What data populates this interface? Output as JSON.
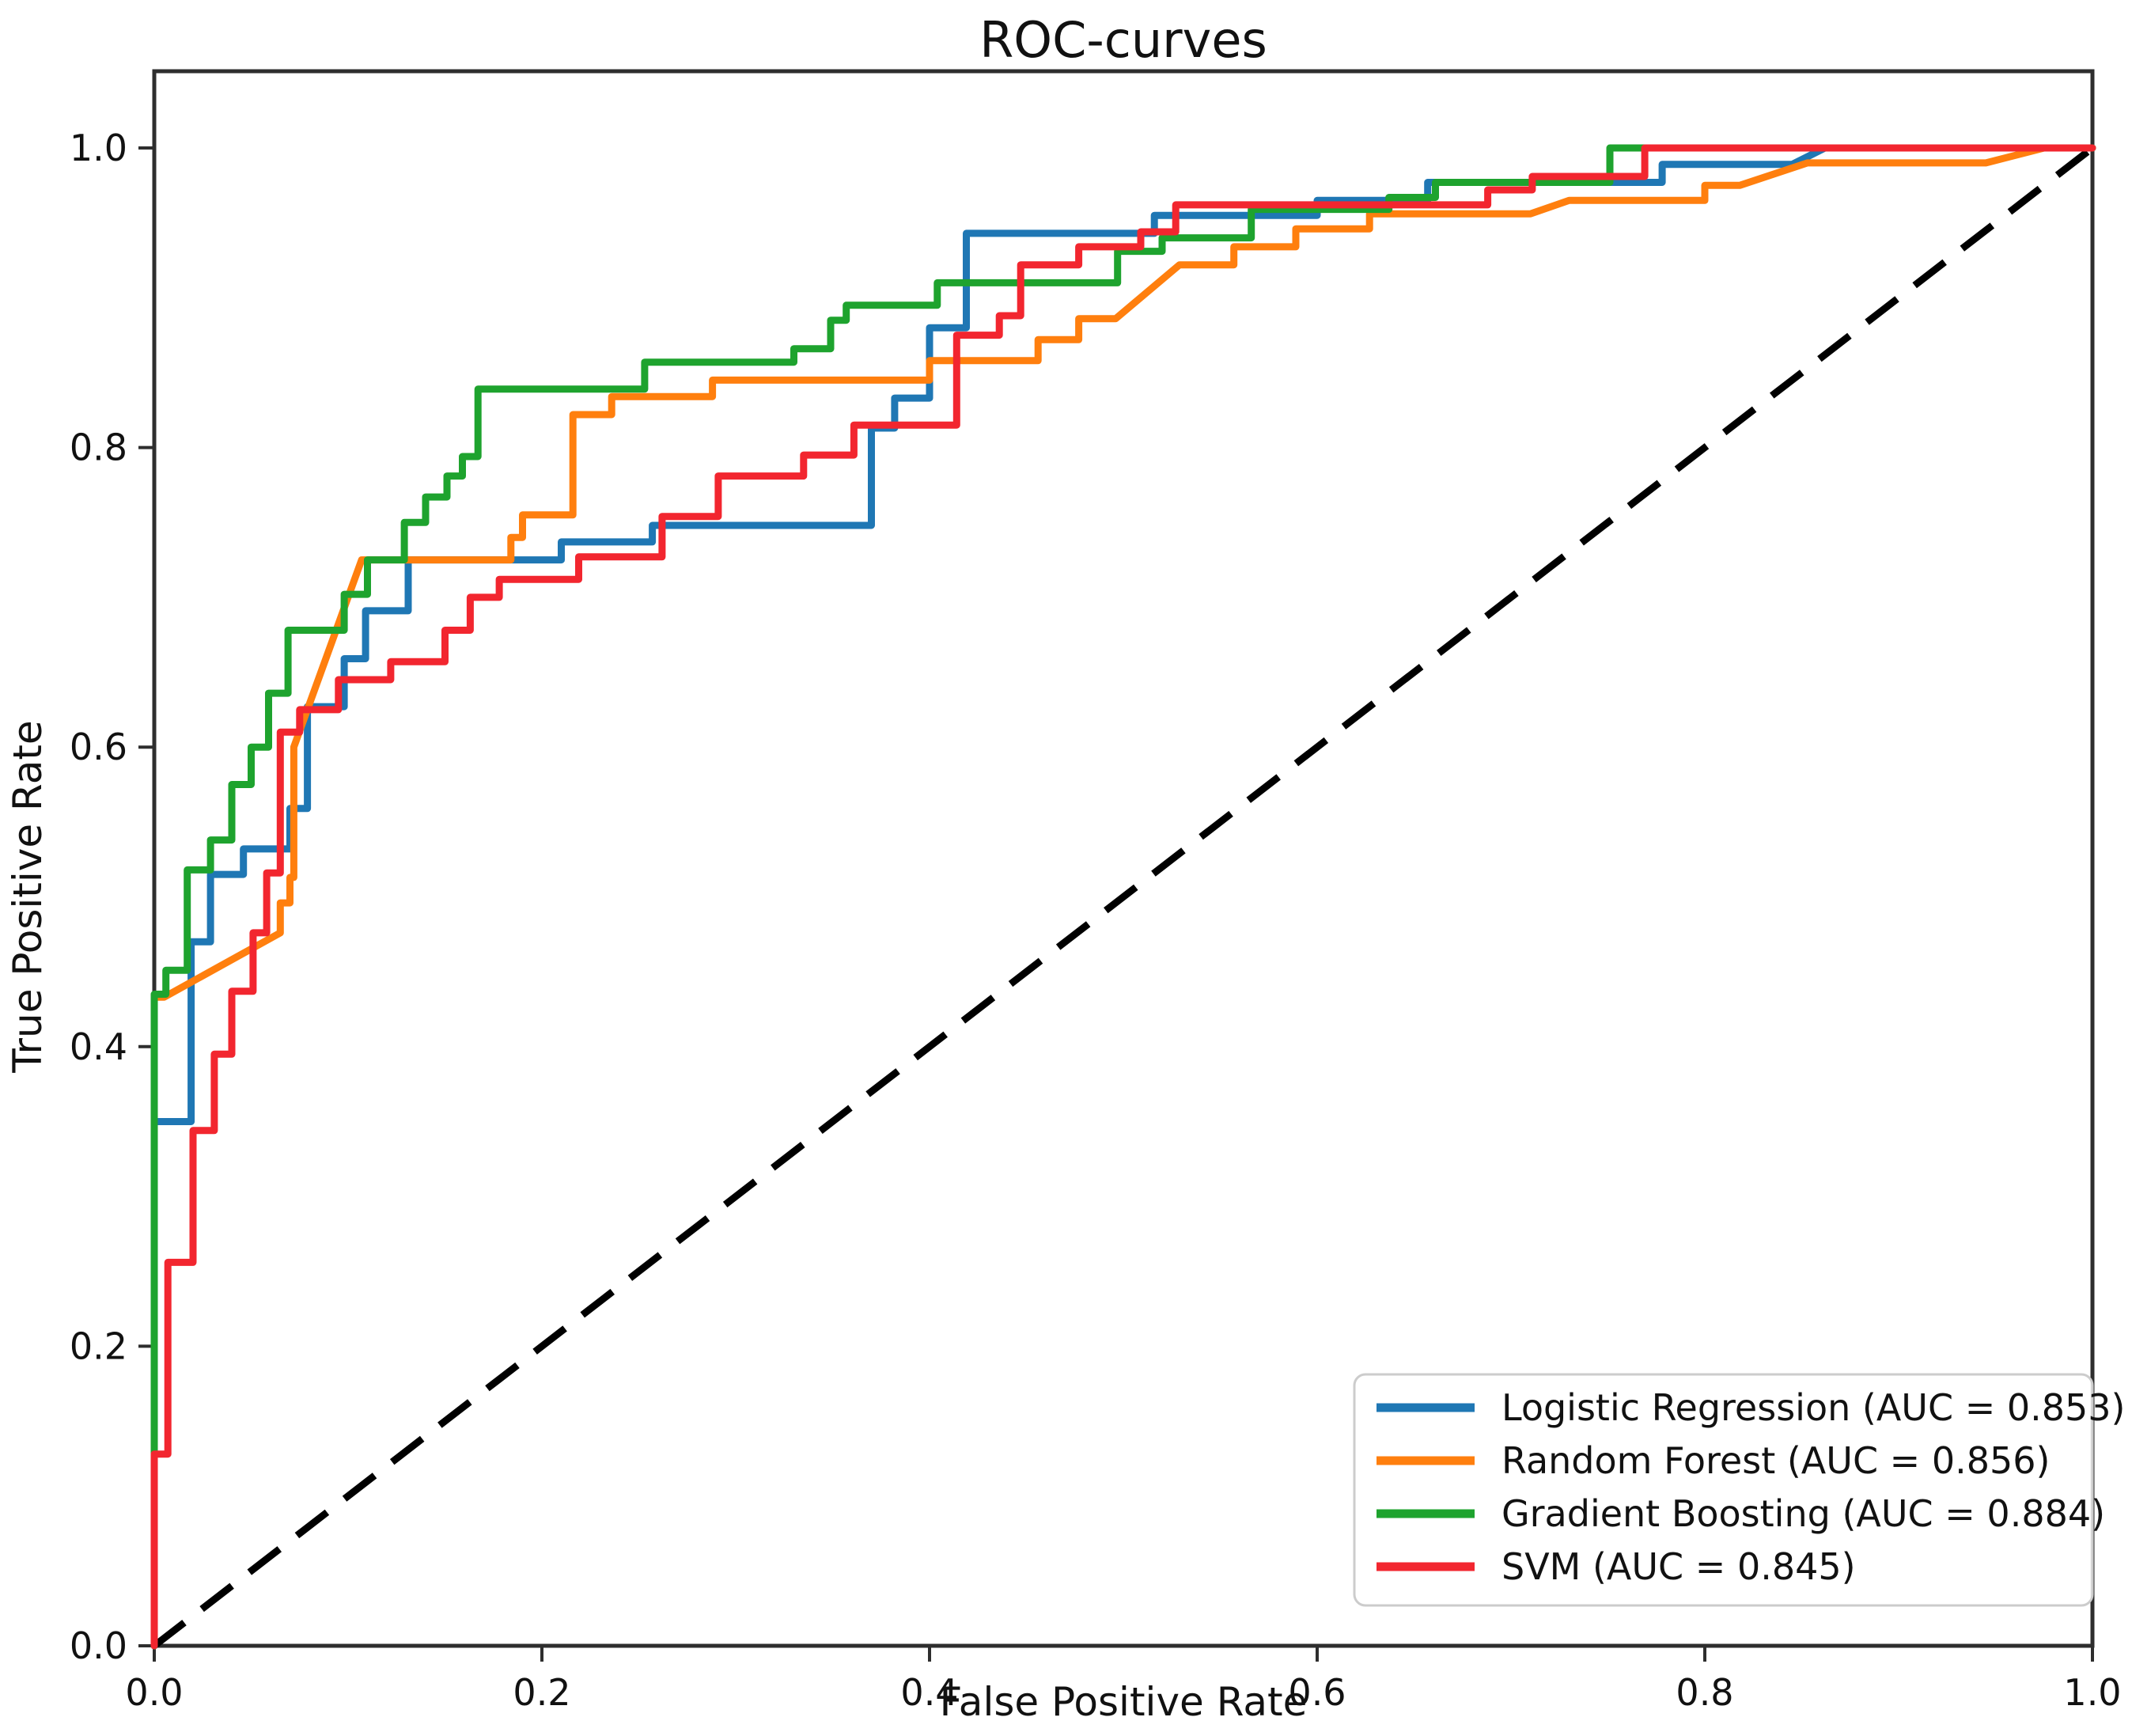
{
  "figure": {
    "title": "ROC-curves"
  },
  "chart_data": {
    "type": "line",
    "subtype": "roc-step-curves",
    "title": "ROC-curves",
    "xlabel": "False Positive Rate",
    "ylabel": "True Positive Rate",
    "xlim": [
      0.0,
      1.0
    ],
    "ylim": [
      0.0,
      1.05
    ],
    "x_ticks": [
      0.0,
      0.2,
      0.4,
      0.6,
      0.8,
      1.0
    ],
    "y_ticks": [
      0.0,
      0.2,
      0.4,
      0.6,
      0.8,
      1.0
    ],
    "x_tick_labels": [
      "0.0",
      "0.2",
      "0.4",
      "0.6",
      "0.8",
      "1.0"
    ],
    "y_tick_labels": [
      "0.0",
      "0.2",
      "0.4",
      "0.6",
      "0.8",
      "1.0"
    ],
    "grid": false,
    "legend_position": "lower right",
    "text_color": "#111111",
    "spine_color": "#2e2e2e",
    "legend_border_color": "#cccccc",
    "diagonal": {
      "name": "chance-line",
      "style": "dashed",
      "color": "#000000",
      "points": [
        [
          0.0,
          0.0
        ],
        [
          1.0,
          1.0
        ]
      ]
    },
    "series": [
      {
        "name": "Logistic Regression (AUC = 0.853)",
        "model": "Logistic Regression",
        "auc": 0.853,
        "color": "#1f77b4",
        "points": [
          [
            0,
            0
          ],
          [
            0,
            0.35
          ],
          [
            0.019,
            0.35
          ],
          [
            0.019,
            0.47
          ],
          [
            0.029,
            0.47
          ],
          [
            0.029,
            0.515
          ],
          [
            0.046,
            0.515
          ],
          [
            0.046,
            0.532
          ],
          [
            0.07,
            0.532
          ],
          [
            0.07,
            0.559
          ],
          [
            0.079,
            0.559
          ],
          [
            0.079,
            0.627
          ],
          [
            0.098,
            0.627
          ],
          [
            0.098,
            0.659
          ],
          [
            0.109,
            0.659
          ],
          [
            0.109,
            0.691
          ],
          [
            0.131,
            0.691
          ],
          [
            0.131,
            0.725
          ],
          [
            0.21,
            0.725
          ],
          [
            0.21,
            0.737
          ],
          [
            0.257,
            0.737
          ],
          [
            0.257,
            0.748
          ],
          [
            0.37,
            0.748
          ],
          [
            0.37,
            0.813
          ],
          [
            0.382,
            0.813
          ],
          [
            0.382,
            0.833
          ],
          [
            0.4,
            0.833
          ],
          [
            0.4,
            0.88
          ],
          [
            0.419,
            0.88
          ],
          [
            0.419,
            0.943
          ],
          [
            0.516,
            0.943
          ],
          [
            0.516,
            0.955
          ],
          [
            0.6,
            0.955
          ],
          [
            0.6,
            0.965
          ],
          [
            0.657,
            0.965
          ],
          [
            0.657,
            0.977
          ],
          [
            0.778,
            0.977
          ],
          [
            0.778,
            0.989
          ],
          [
            0.845,
            0.989
          ],
          [
            0.862,
            1.0
          ],
          [
            1.0,
            1.0
          ]
        ]
      },
      {
        "name": "Random Forest (AUC = 0.856)",
        "model": "Random Forest",
        "auc": 0.856,
        "color": "#ff7f0e",
        "points": [
          [
            0,
            0
          ],
          [
            0,
            0.433
          ],
          [
            0.005,
            0.433
          ],
          [
            0.065,
            0.476
          ],
          [
            0.065,
            0.496
          ],
          [
            0.07,
            0.496
          ],
          [
            0.07,
            0.513
          ],
          [
            0.072,
            0.513
          ],
          [
            0.072,
            0.6
          ],
          [
            0.107,
            0.725
          ],
          [
            0.184,
            0.725
          ],
          [
            0.184,
            0.74
          ],
          [
            0.19,
            0.74
          ],
          [
            0.19,
            0.755
          ],
          [
            0.216,
            0.755
          ],
          [
            0.216,
            0.822
          ],
          [
            0.236,
            0.822
          ],
          [
            0.236,
            0.834
          ],
          [
            0.288,
            0.834
          ],
          [
            0.288,
            0.845
          ],
          [
            0.4,
            0.845
          ],
          [
            0.4,
            0.858
          ],
          [
            0.456,
            0.858
          ],
          [
            0.456,
            0.872
          ],
          [
            0.477,
            0.872
          ],
          [
            0.477,
            0.886
          ],
          [
            0.496,
            0.886
          ],
          [
            0.529,
            0.922
          ],
          [
            0.557,
            0.922
          ],
          [
            0.557,
            0.934
          ],
          [
            0.589,
            0.934
          ],
          [
            0.589,
            0.946
          ],
          [
            0.627,
            0.946
          ],
          [
            0.627,
            0.956
          ],
          [
            0.71,
            0.956
          ],
          [
            0.73,
            0.965
          ],
          [
            0.8,
            0.965
          ],
          [
            0.8,
            0.975
          ],
          [
            0.818,
            0.975
          ],
          [
            0.853,
            0.99
          ],
          [
            0.945,
            0.99
          ],
          [
            0.975,
            1.0
          ],
          [
            1.0,
            1.0
          ]
        ]
      },
      {
        "name": "Gradient Boosting (AUC = 0.884)",
        "model": "Gradient Boosting",
        "auc": 0.884,
        "color": "#1ea32e",
        "points": [
          [
            0,
            0
          ],
          [
            0,
            0.435
          ],
          [
            0.006,
            0.435
          ],
          [
            0.006,
            0.451
          ],
          [
            0.017,
            0.451
          ],
          [
            0.017,
            0.518
          ],
          [
            0.029,
            0.518
          ],
          [
            0.029,
            0.538
          ],
          [
            0.04,
            0.538
          ],
          [
            0.04,
            0.575
          ],
          [
            0.05,
            0.575
          ],
          [
            0.05,
            0.6
          ],
          [
            0.059,
            0.6
          ],
          [
            0.059,
            0.636
          ],
          [
            0.069,
            0.636
          ],
          [
            0.069,
            0.678
          ],
          [
            0.098,
            0.678
          ],
          [
            0.098,
            0.702
          ],
          [
            0.11,
            0.702
          ],
          [
            0.11,
            0.725
          ],
          [
            0.129,
            0.725
          ],
          [
            0.129,
            0.75
          ],
          [
            0.14,
            0.75
          ],
          [
            0.14,
            0.767
          ],
          [
            0.151,
            0.767
          ],
          [
            0.151,
            0.781
          ],
          [
            0.159,
            0.781
          ],
          [
            0.159,
            0.794
          ],
          [
            0.167,
            0.794
          ],
          [
            0.167,
            0.839
          ],
          [
            0.253,
            0.839
          ],
          [
            0.253,
            0.857
          ],
          [
            0.33,
            0.857
          ],
          [
            0.33,
            0.866
          ],
          [
            0.349,
            0.866
          ],
          [
            0.349,
            0.885
          ],
          [
            0.357,
            0.885
          ],
          [
            0.357,
            0.895
          ],
          [
            0.404,
            0.895
          ],
          [
            0.404,
            0.91
          ],
          [
            0.497,
            0.91
          ],
          [
            0.497,
            0.931
          ],
          [
            0.52,
            0.931
          ],
          [
            0.52,
            0.94
          ],
          [
            0.566,
            0.94
          ],
          [
            0.566,
            0.959
          ],
          [
            0.637,
            0.959
          ],
          [
            0.637,
            0.967
          ],
          [
            0.661,
            0.967
          ],
          [
            0.661,
            0.977
          ],
          [
            0.751,
            0.977
          ],
          [
            0.751,
            1.0
          ],
          [
            1.0,
            1.0
          ]
        ]
      },
      {
        "name": "SVM (AUC = 0.845)",
        "model": "SVM",
        "auc": 0.845,
        "color": "#f2262f",
        "points": [
          [
            0,
            0
          ],
          [
            0,
            0.128
          ],
          [
            0.007,
            0.128
          ],
          [
            0.007,
            0.256
          ],
          [
            0.02,
            0.256
          ],
          [
            0.02,
            0.344
          ],
          [
            0.031,
            0.344
          ],
          [
            0.031,
            0.395
          ],
          [
            0.04,
            0.395
          ],
          [
            0.04,
            0.437
          ],
          [
            0.051,
            0.437
          ],
          [
            0.051,
            0.476
          ],
          [
            0.058,
            0.476
          ],
          [
            0.058,
            0.516
          ],
          [
            0.065,
            0.516
          ],
          [
            0.065,
            0.61
          ],
          [
            0.075,
            0.61
          ],
          [
            0.075,
            0.625
          ],
          [
            0.095,
            0.625
          ],
          [
            0.095,
            0.645
          ],
          [
            0.122,
            0.645
          ],
          [
            0.122,
            0.657
          ],
          [
            0.15,
            0.657
          ],
          [
            0.15,
            0.678
          ],
          [
            0.163,
            0.678
          ],
          [
            0.163,
            0.7
          ],
          [
            0.178,
            0.7
          ],
          [
            0.178,
            0.712
          ],
          [
            0.219,
            0.712
          ],
          [
            0.219,
            0.727
          ],
          [
            0.262,
            0.727
          ],
          [
            0.262,
            0.754
          ],
          [
            0.291,
            0.754
          ],
          [
            0.291,
            0.781
          ],
          [
            0.335,
            0.781
          ],
          [
            0.335,
            0.795
          ],
          [
            0.361,
            0.795
          ],
          [
            0.361,
            0.815
          ],
          [
            0.414,
            0.815
          ],
          [
            0.414,
            0.875
          ],
          [
            0.436,
            0.875
          ],
          [
            0.436,
            0.888
          ],
          [
            0.447,
            0.888
          ],
          [
            0.447,
            0.922
          ],
          [
            0.477,
            0.922
          ],
          [
            0.477,
            0.934
          ],
          [
            0.509,
            0.934
          ],
          [
            0.509,
            0.944
          ],
          [
            0.527,
            0.944
          ],
          [
            0.527,
            0.962
          ],
          [
            0.688,
            0.962
          ],
          [
            0.688,
            0.972
          ],
          [
            0.711,
            0.972
          ],
          [
            0.711,
            0.981
          ],
          [
            0.769,
            0.981
          ],
          [
            0.769,
            1.0
          ],
          [
            1.0,
            1.0
          ]
        ]
      }
    ]
  }
}
